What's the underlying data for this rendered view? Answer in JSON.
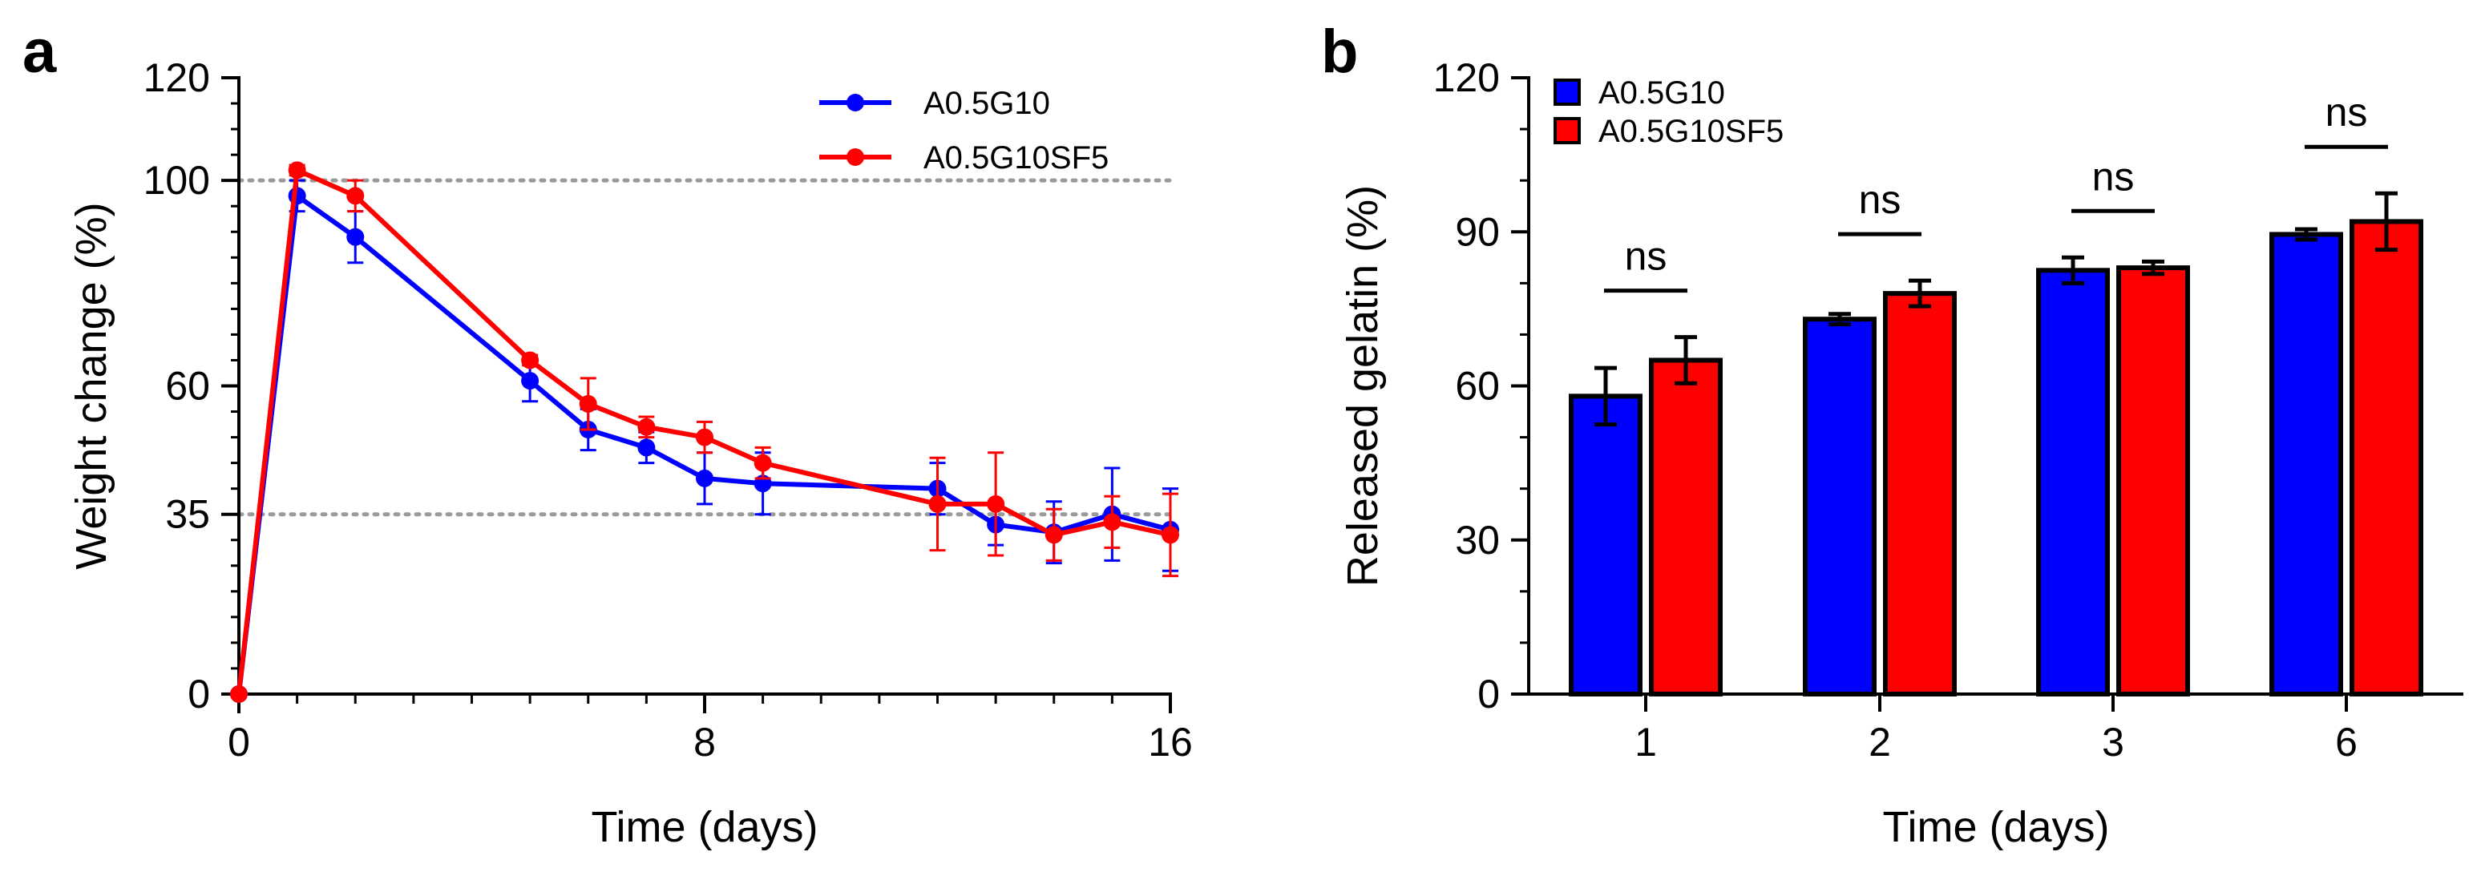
{
  "panels": [
    {
      "letter": "a"
    },
    {
      "letter": "b"
    }
  ],
  "chart_data": [
    {
      "type": "line",
      "panel": "a",
      "xlabel": "Time (days)",
      "ylabel": "Weight change (%)",
      "xlim": [
        0,
        16
      ],
      "ylim": [
        0,
        120
      ],
      "xticks": [
        "0",
        "8",
        "16"
      ],
      "xtick_values": [
        0,
        8,
        16
      ],
      "yticks": [
        "0",
        "35",
        "60",
        "100",
        "120"
      ],
      "ytick_values": [
        0,
        35,
        60,
        100,
        120
      ],
      "reference_lines": [
        100,
        35
      ],
      "legend_position": "top-right",
      "series": [
        {
          "name": "A0.5G10",
          "color": "#0000ff",
          "x": [
            0,
            1,
            2,
            5,
            6,
            7,
            8,
            9,
            12,
            13,
            14,
            15,
            16
          ],
          "y": [
            0,
            97,
            89,
            61,
            51.5,
            48,
            42,
            41,
            40,
            33,
            31.5,
            35,
            32
          ],
          "err": [
            0,
            3,
            5,
            4,
            4,
            3,
            5,
            6,
            5,
            4,
            6,
            9,
            8
          ]
        },
        {
          "name": "A0.5G10SF5",
          "color": "#ff0000",
          "x": [
            0,
            1,
            2,
            5,
            6,
            7,
            8,
            9,
            12,
            13,
            14,
            15,
            16
          ],
          "y": [
            0,
            102,
            97,
            65,
            56.5,
            52,
            50,
            45,
            37,
            37,
            31,
            33.5,
            31
          ],
          "err": [
            0,
            1,
            3,
            1,
            5,
            2,
            3,
            3,
            9,
            10,
            5,
            5,
            8
          ]
        }
      ]
    },
    {
      "type": "bar",
      "panel": "b",
      "xlabel": "Time (days)",
      "ylabel": "Released gelatin (%)",
      "ylim": [
        0,
        120
      ],
      "categories": [
        "1",
        "2",
        "3",
        "6"
      ],
      "yticks": [
        "0",
        "30",
        "60",
        "90",
        "120"
      ],
      "ytick_values": [
        0,
        30,
        60,
        90,
        120
      ],
      "legend_position": "top-left",
      "significance": [
        "ns",
        "ns",
        "ns",
        "ns"
      ],
      "series": [
        {
          "name": "A0.5G10",
          "color": "#0000ff",
          "values": [
            58,
            73,
            82.5,
            89.5
          ],
          "err": [
            5.5,
            1,
            2.5,
            1
          ]
        },
        {
          "name": "A0.5G10SF5",
          "color": "#ff0000",
          "values": [
            65,
            78,
            83,
            92
          ],
          "err": [
            4.5,
            2.5,
            1.2,
            5.5
          ]
        }
      ]
    }
  ]
}
